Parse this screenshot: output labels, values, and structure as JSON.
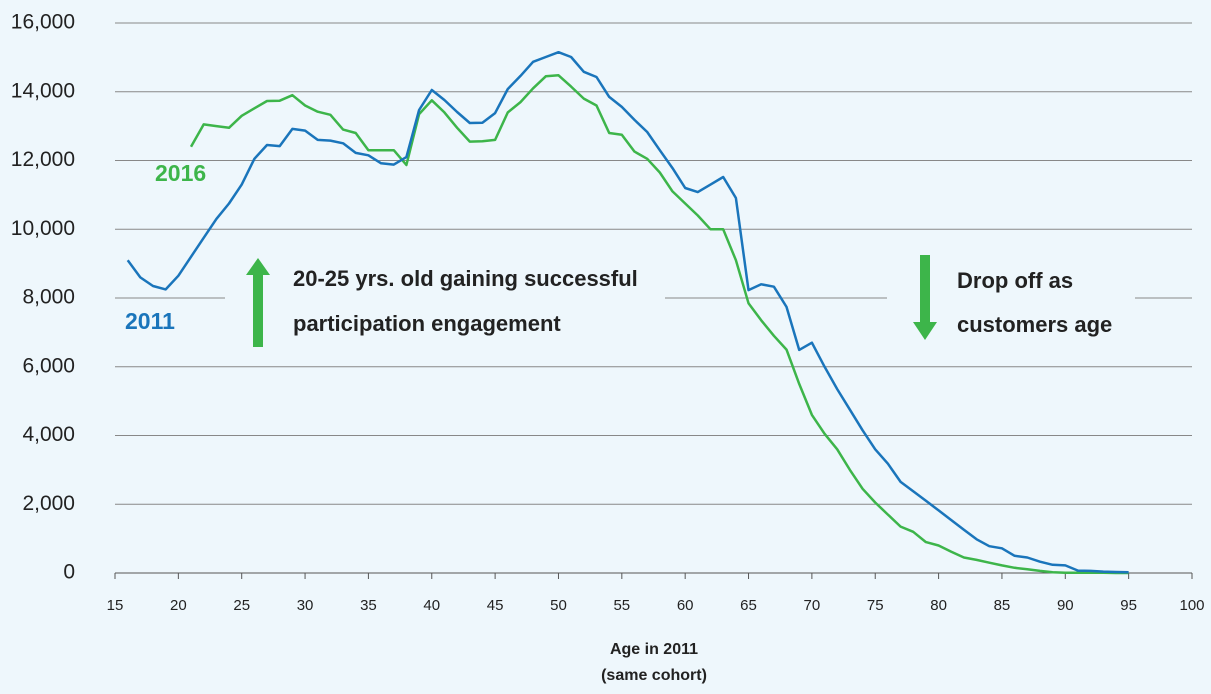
{
  "chart_data": {
    "type": "line",
    "x": [
      16,
      17,
      18,
      19,
      20,
      21,
      22,
      23,
      24,
      25,
      26,
      27,
      28,
      29,
      30,
      31,
      32,
      33,
      34,
      35,
      36,
      37,
      38,
      39,
      40,
      41,
      42,
      43,
      44,
      45,
      46,
      47,
      48,
      49,
      50,
      51,
      52,
      53,
      54,
      55,
      56,
      57,
      58,
      59,
      60,
      61,
      62,
      63,
      64,
      65,
      66,
      67,
      68,
      69,
      70,
      71,
      72,
      73,
      74,
      75,
      76,
      77,
      78,
      79,
      80,
      81,
      82,
      83,
      84,
      85,
      86,
      87,
      88,
      89,
      90,
      91,
      92,
      93,
      94,
      95
    ],
    "series": [
      {
        "name": "2016",
        "color": "#3db54a",
        "values": [
          null,
          null,
          null,
          null,
          null,
          12400,
          13050,
          13000,
          12950,
          13300,
          13520,
          13730,
          13740,
          13900,
          13600,
          13420,
          13330,
          12900,
          12800,
          12300,
          12300,
          12300,
          11870,
          13350,
          13750,
          13400,
          12950,
          12550,
          12560,
          12600,
          13400,
          13700,
          14100,
          14450,
          14480,
          14150,
          13800,
          13600,
          12800,
          12750,
          12260,
          12050,
          11650,
          11100,
          10750,
          10400,
          10000,
          10000,
          9100,
          7850,
          7350,
          6900,
          6500,
          5500,
          4600,
          4050,
          3600,
          3000,
          2450,
          2050,
          1700,
          1350,
          1200,
          900,
          800,
          620,
          450,
          380,
          300,
          220,
          150,
          110,
          60,
          20,
          10,
          10,
          5,
          5,
          0,
          0
        ]
      },
      {
        "name": "2011",
        "color": "#1a75bb",
        "values": [
          9100,
          8600,
          8350,
          8250,
          8650,
          9200,
          9750,
          10300,
          10750,
          11300,
          12050,
          12450,
          12420,
          12920,
          12870,
          12600,
          12580,
          12500,
          12220,
          12150,
          11920,
          11880,
          12100,
          13470,
          14050,
          13760,
          13410,
          13090,
          13100,
          13380,
          14080,
          14460,
          14870,
          15010,
          15150,
          15010,
          14580,
          14430,
          13850,
          13560,
          13180,
          12830,
          12300,
          11780,
          11200,
          11080,
          11300,
          11520,
          10910,
          8230,
          8400,
          8330,
          7740,
          6490,
          6700,
          6000,
          5350,
          4750,
          4150,
          3600,
          3180,
          2650,
          2380,
          2100,
          1820,
          1540,
          1260,
          980,
          780,
          720,
          500,
          450,
          330,
          240,
          220,
          70,
          60,
          40,
          30,
          20
        ]
      }
    ],
    "xlim": [
      15,
      100
    ],
    "xticks": [
      15,
      20,
      25,
      30,
      35,
      40,
      45,
      50,
      55,
      60,
      65,
      70,
      75,
      80,
      85,
      90,
      95,
      100
    ],
    "ylim": [
      0,
      16000
    ],
    "yticks": [
      0,
      {
        "value": 2000,
        "label": "2,000"
      },
      {
        "value": 4000,
        "label": "4,000"
      },
      {
        "value": 6000,
        "label": "6,000"
      },
      {
        "value": 8000,
        "label": "8,000"
      },
      {
        "value": 10000,
        "label": "10,000"
      },
      {
        "value": 12000,
        "label": "12,000"
      },
      {
        "value": 14000,
        "label": "14,000"
      },
      {
        "value": 16000,
        "label": "16,000"
      }
    ],
    "grid": true,
    "x_label": [
      "Age in 2011",
      "(same cohort)"
    ],
    "annotations": [
      "20-25 yrs. old gaining successful",
      "participation engagement",
      "Drop off as",
      "customers age"
    ]
  }
}
